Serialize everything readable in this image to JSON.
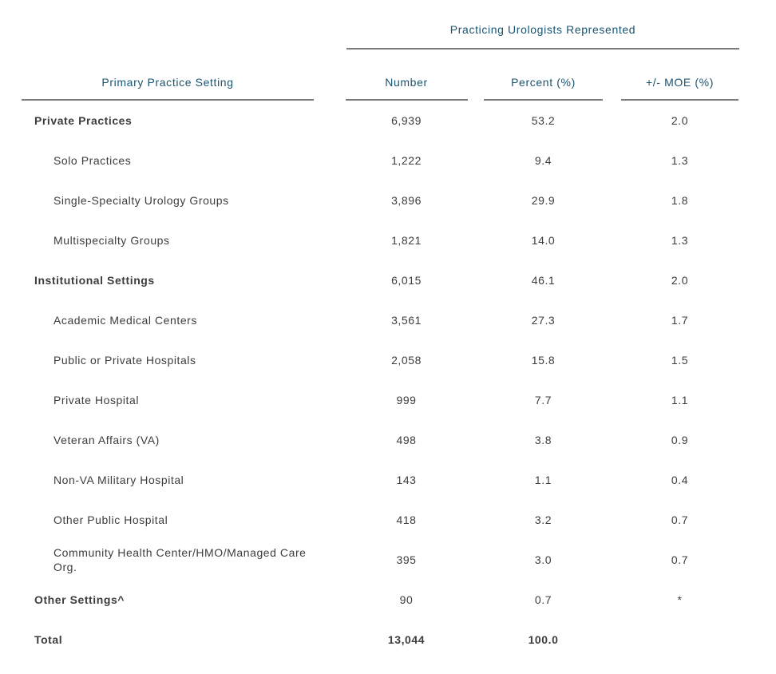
{
  "chart_data": {
    "type": "table",
    "title": "Practicing Urologists Represented",
    "columns": {
      "setting": "Primary Practice Setting",
      "number": "Number",
      "percent": "Percent (%)",
      "moe": "+/- MOE (%)"
    },
    "rows": [
      {
        "label": "Private Practices",
        "number": "6,939",
        "percent": "53.2",
        "moe": "2.0",
        "level": "section"
      },
      {
        "label": "Solo Practices",
        "number": "1,222",
        "percent": "9.4",
        "moe": "1.3",
        "level": "sub"
      },
      {
        "label": "Single-Specialty Urology Groups",
        "number": "3,896",
        "percent": "29.9",
        "moe": "1.8",
        "level": "sub"
      },
      {
        "label": "Multispecialty Groups",
        "number": "1,821",
        "percent": "14.0",
        "moe": "1.3",
        "level": "sub"
      },
      {
        "label": "Institutional Settings",
        "number": "6,015",
        "percent": "46.1",
        "moe": "2.0",
        "level": "section"
      },
      {
        "label": "Academic Medical Centers",
        "number": "3,561",
        "percent": "27.3",
        "moe": "1.7",
        "level": "sub"
      },
      {
        "label": "Public or Private Hospitals",
        "number": "2,058",
        "percent": "15.8",
        "moe": "1.5",
        "level": "sub"
      },
      {
        "label": "Private Hospital",
        "number": "999",
        "percent": "7.7",
        "moe": "1.1",
        "level": "sub"
      },
      {
        "label": "Veteran Affairs (VA)",
        "number": "498",
        "percent": "3.8",
        "moe": "0.9",
        "level": "sub"
      },
      {
        "label": "Non-VA Military Hospital",
        "number": "143",
        "percent": "1.1",
        "moe": "0.4",
        "level": "sub"
      },
      {
        "label": "Other Public Hospital",
        "number": "418",
        "percent": "3.2",
        "moe": "0.7",
        "level": "sub"
      },
      {
        "label": "Community Health Center/HMO/Managed Care Org.",
        "number": "395",
        "percent": "3.0",
        "moe": "0.7",
        "level": "sub"
      },
      {
        "label": "Other Settings^",
        "number": "90",
        "percent": "0.7",
        "moe": "*",
        "level": "section"
      },
      {
        "label": "Total",
        "number": "13,044",
        "percent": "100.0",
        "moe": "",
        "level": "total"
      }
    ],
    "layout": {
      "grid": "off",
      "number_alignment": "center",
      "suppressed_moe_marker": "*",
      "footnote_marker": "^"
    },
    "colors": {
      "header_text": "#1a5470",
      "rule": "#7b7b7b",
      "body_text": "#3d3d3d",
      "background": "#ffffff"
    }
  }
}
